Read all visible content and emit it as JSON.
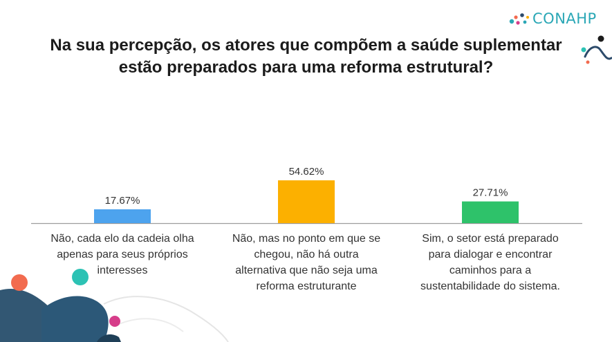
{
  "brand": {
    "name": "CONAHP"
  },
  "title_line1": "Na sua percepção, os atores que compõem a saúde suplementar",
  "title_line2": "estão preparados para uma reforma estrutural?",
  "chart_data": {
    "type": "bar",
    "title": "Na sua percepção, os atores que compõem a saúde suplementar estão preparados para uma reforma estrutural?",
    "categories": [
      "Não, cada elo da cadeia olha apenas para seus próprios interesses",
      "Não, mas no ponto em que se chegou, não há outra alternativa que não seja uma reforma estruturante",
      "Sim, o setor está preparado para dialogar e encontrar caminhos para a sustentabilidade do sistema."
    ],
    "category_lines": [
      [
        "Não, cada elo da cadeia olha",
        "apenas para seus próprios",
        "interesses"
      ],
      [
        "Não, mas no ponto em que se",
        "chegou, não há outra",
        "alternativa que não seja uma",
        "reforma estruturante"
      ],
      [
        "Sim, o setor está preparado",
        "para dialogar e encontrar",
        "caminhos para a",
        "sustentabilidade do sistema."
      ]
    ],
    "values": [
      17.67,
      54.62,
      27.71
    ],
    "data_labels": [
      "17.67%",
      "54.62%",
      "27.71%"
    ],
    "colors": [
      "#4da3ee",
      "#fcb000",
      "#2ec26a"
    ],
    "xlabel": "",
    "ylabel": "",
    "ylim": [
      0,
      100
    ],
    "grid": false,
    "legend": "none"
  }
}
